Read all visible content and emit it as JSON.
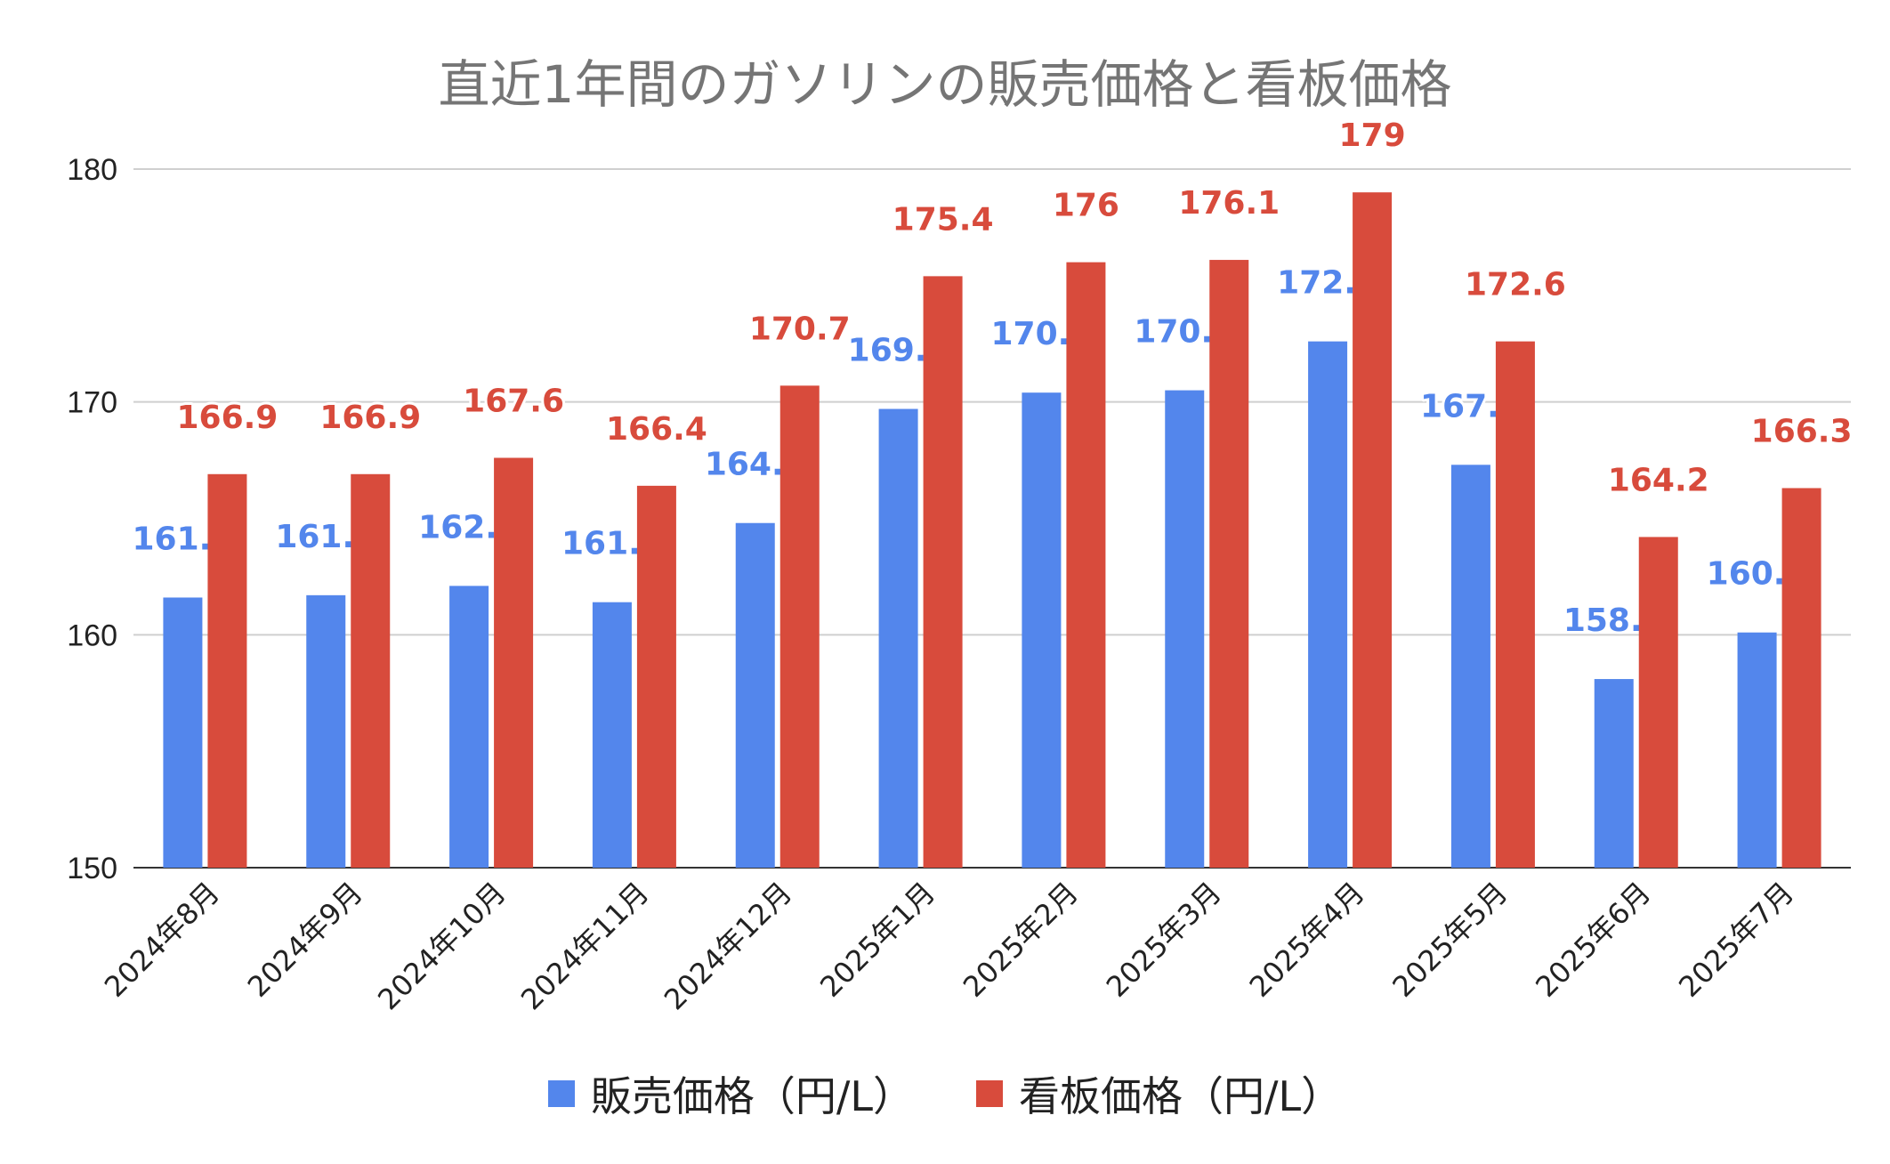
{
  "chart_data": {
    "type": "bar",
    "title": "直近1年間のガソリンの販売価格と看板価格",
    "categories": [
      "2024年8月",
      "2024年9月",
      "2024年10月",
      "2024年11月",
      "2024年12月",
      "2025年1月",
      "2025年2月",
      "2025年3月",
      "2025年4月",
      "2025年5月",
      "2025年6月",
      "2025年7月"
    ],
    "series": [
      {
        "name": "販売価格（円/L）",
        "color": "#5386ec",
        "values": [
          161.6,
          161.7,
          162.1,
          161.4,
          164.8,
          169.7,
          170.4,
          170.5,
          172.6,
          167.3,
          158.1,
          160.1
        ]
      },
      {
        "name": "看板価格（円/L）",
        "color": "#d84b3c",
        "values": [
          166.9,
          166.9,
          167.6,
          166.4,
          170.7,
          175.4,
          176,
          176.1,
          179,
          172.6,
          164.2,
          166.3
        ]
      }
    ],
    "ylim": [
      150,
      180
    ],
    "yticks": [
      150,
      160,
      170,
      180
    ],
    "grid": true,
    "legend": "bottom",
    "data_labels": true,
    "xlabel": "",
    "ylabel": ""
  }
}
